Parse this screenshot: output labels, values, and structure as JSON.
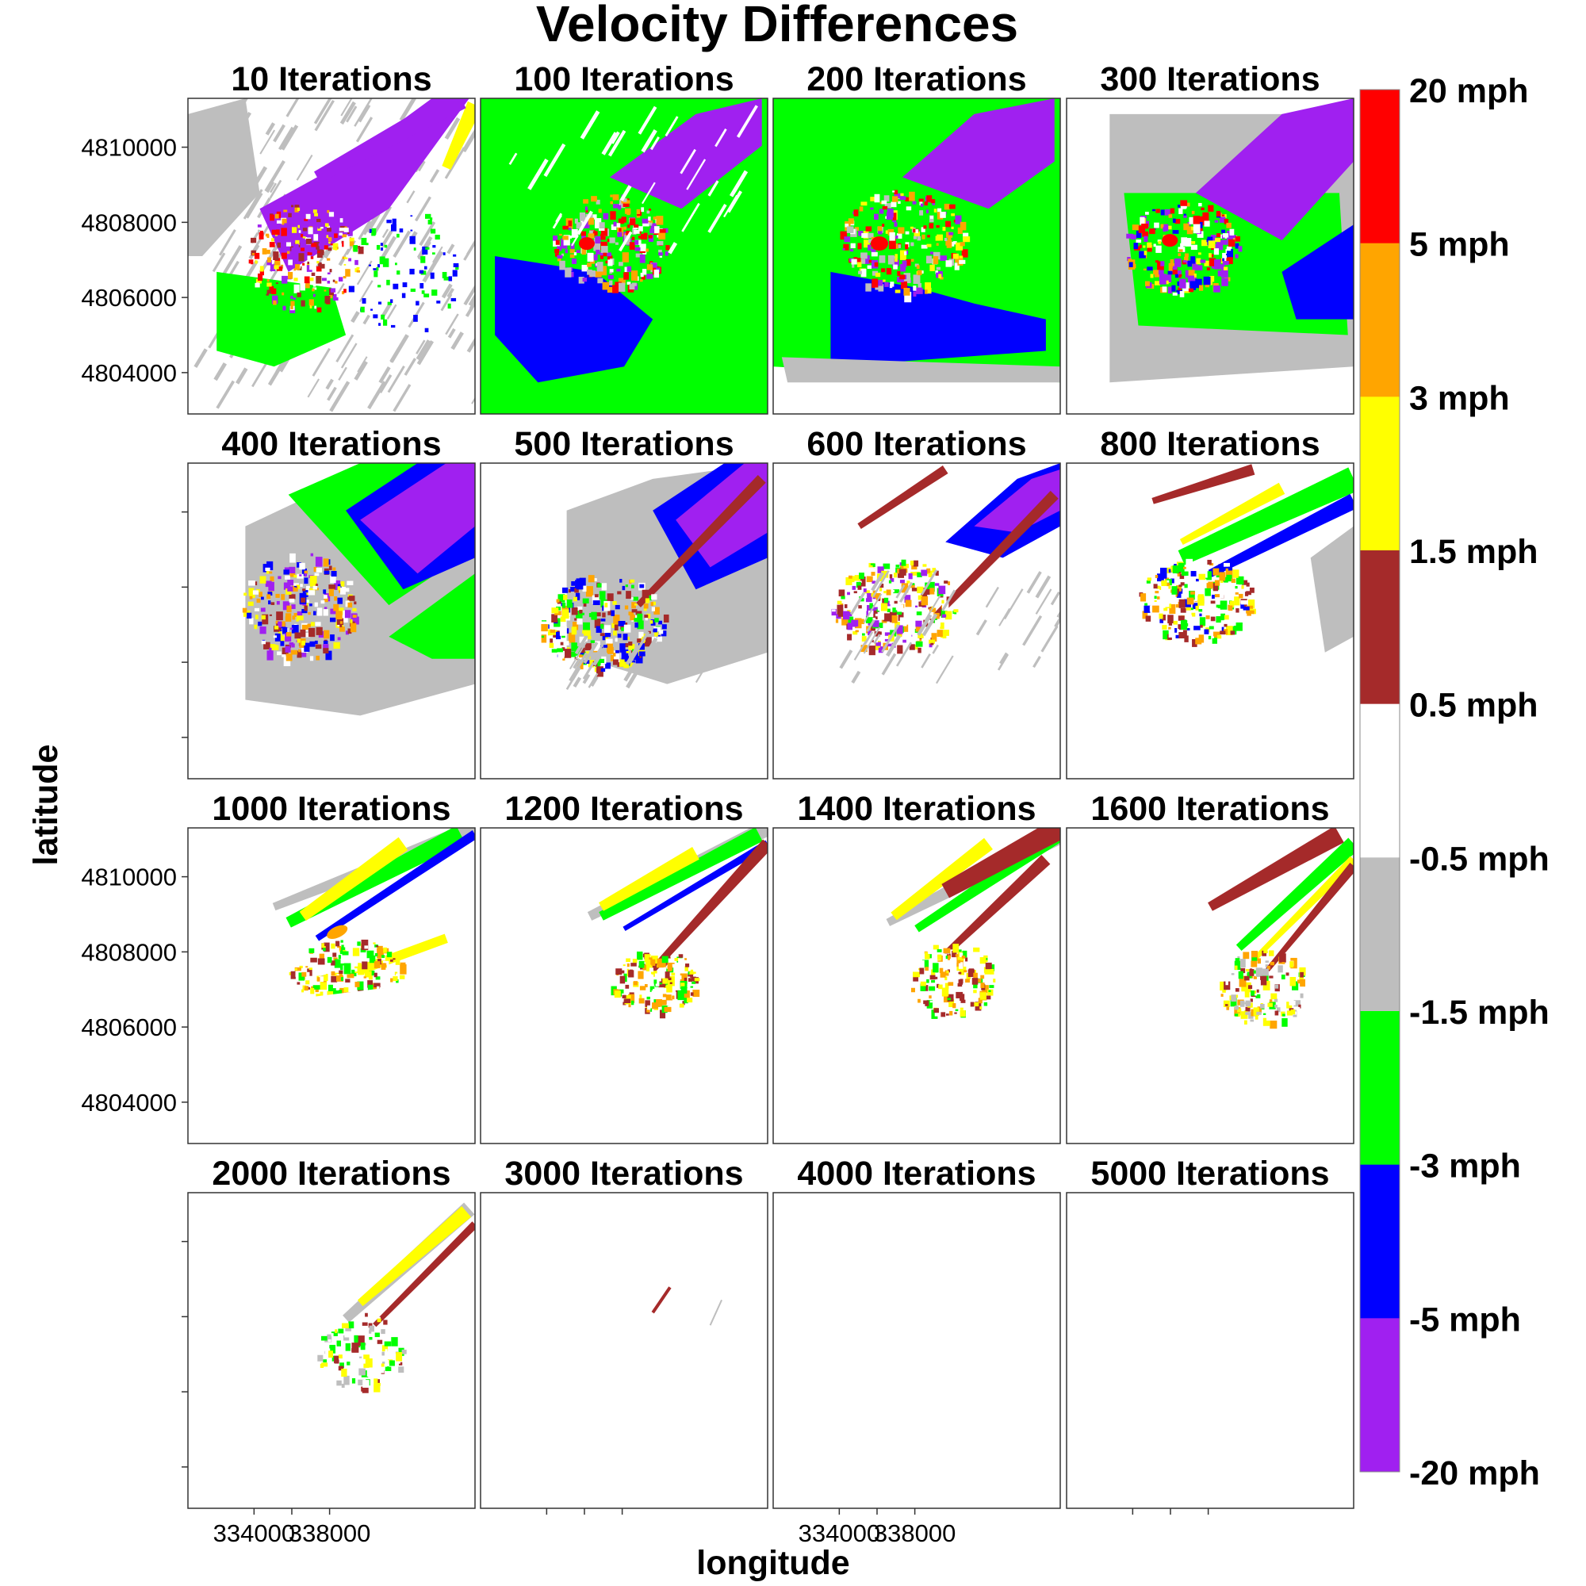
{
  "chart_data": {
    "type": "heatmap",
    "title": "Velocity Differences",
    "xlabel": "longitude",
    "ylabel": "latitude",
    "x_ticks": [
      334000,
      338000
    ],
    "y_ticks": [
      4804000,
      4806000,
      4808000,
      4810000
    ],
    "x_tick_labels": [
      "334000",
      "338000"
    ],
    "y_tick_labels": [
      "4810000",
      "4808000",
      "4806000",
      "4804000"
    ],
    "xlim": [
      330500,
      345700
    ],
    "ylim": [
      4802900,
      4811300
    ],
    "facet_rows": 4,
    "facet_cols": 4,
    "panels": [
      {
        "title": "10 Iterations",
        "iterations": 10
      },
      {
        "title": "100 Iterations",
        "iterations": 100
      },
      {
        "title": "200 Iterations",
        "iterations": 200
      },
      {
        "title": "300 Iterations",
        "iterations": 300
      },
      {
        "title": "400 Iterations",
        "iterations": 400
      },
      {
        "title": "500 Iterations",
        "iterations": 500
      },
      {
        "title": "600 Iterations",
        "iterations": 600
      },
      {
        "title": "800 Iterations",
        "iterations": 800
      },
      {
        "title": "1000 Iterations",
        "iterations": 1000
      },
      {
        "title": "1200 Iterations",
        "iterations": 1200
      },
      {
        "title": "1400 Iterations",
        "iterations": 1400
      },
      {
        "title": "1600 Iterations",
        "iterations": 1600
      },
      {
        "title": "2000 Iterations",
        "iterations": 2000
      },
      {
        "title": "3000 Iterations",
        "iterations": 3000
      },
      {
        "title": "4000 Iterations",
        "iterations": 4000
      },
      {
        "title": "5000 Iterations",
        "iterations": 5000
      }
    ],
    "legend": {
      "placement": "right",
      "bins": [
        {
          "from": 5,
          "to": 20,
          "color": "#ff0000"
        },
        {
          "from": 3,
          "to": 5,
          "color": "#ffa500"
        },
        {
          "from": 1.5,
          "to": 3,
          "color": "#ffff00"
        },
        {
          "from": 0.5,
          "to": 1.5,
          "color": "#a52a2a"
        },
        {
          "from": -0.5,
          "to": 0.5,
          "color": "#ffffff"
        },
        {
          "from": -1.5,
          "to": -0.5,
          "color": "#bebebe"
        },
        {
          "from": -3,
          "to": -1.5,
          "color": "#00ff00"
        },
        {
          "from": -5,
          "to": -3,
          "color": "#0000ff"
        },
        {
          "from": -20,
          "to": -5,
          "color": "#a020f0"
        }
      ],
      "labels": [
        "20 mph",
        "5 mph",
        "3 mph",
        "1.5 mph",
        "0.5 mph",
        "-0.5 mph",
        "-1.5 mph",
        "-3 mph",
        "-5 mph",
        "-20 mph"
      ]
    }
  }
}
